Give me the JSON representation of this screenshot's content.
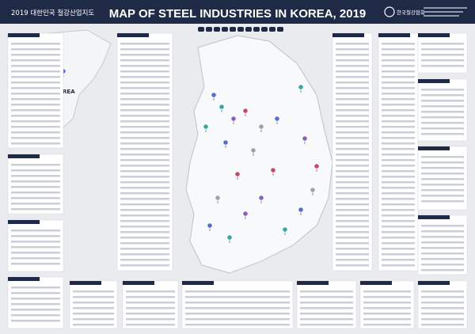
{
  "header": {
    "title_kr": "2019 대한민국 철강산업지도",
    "title_en": "MAP OF STEEL INDUSTRIES IN KOREA, 2019",
    "logo": "한국철강협회"
  },
  "map": {
    "north_label": "NORTH KOREA"
  }
}
